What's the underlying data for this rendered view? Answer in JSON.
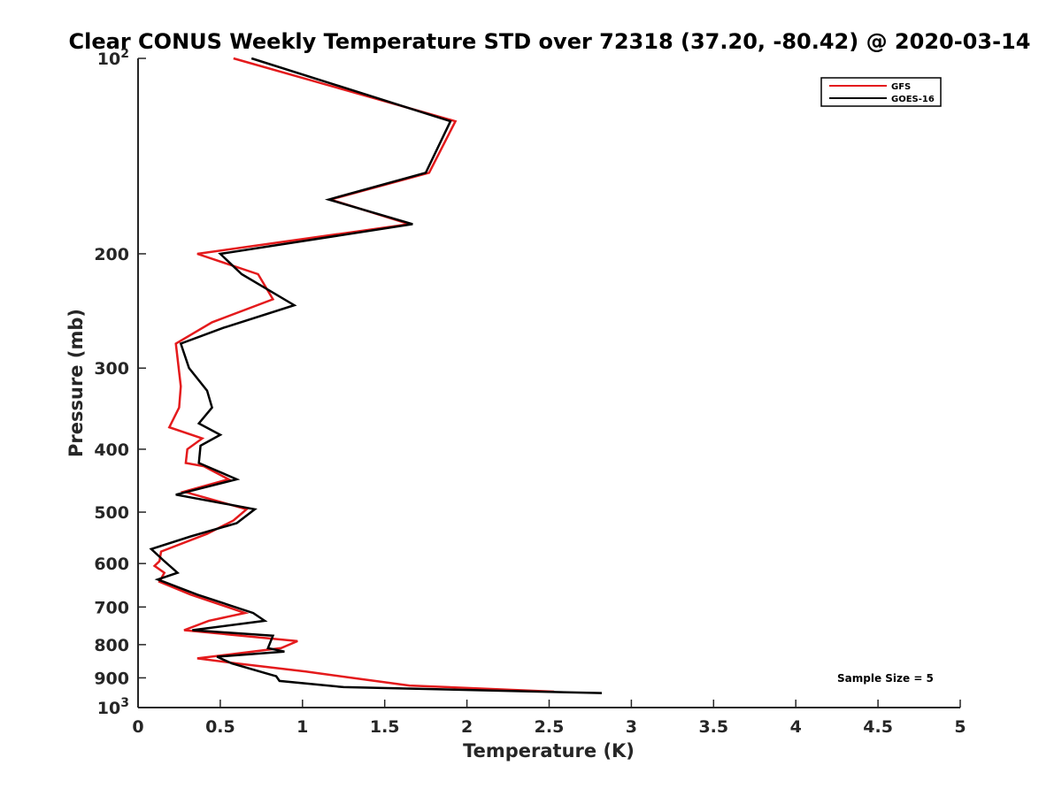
{
  "chart_data": {
    "type": "line",
    "title": "Clear CONUS Weekly Temperature STD over 72318 (37.20, -80.42) @ 2020-03-14",
    "xlabel": "Temperature (K)",
    "ylabel": "Pressure (mb)",
    "xlim": [
      0,
      5
    ],
    "ylim": [
      100,
      1000
    ],
    "y_scale": "log",
    "y_reversed": true,
    "x_ticks": [
      "0",
      "0.5",
      "1",
      "1.5",
      "2",
      "2.5",
      "3",
      "3.5",
      "4",
      "4.5",
      "5"
    ],
    "y_ticks": [
      {
        "value": 100,
        "base": "10",
        "exp": "2"
      },
      {
        "value": 200,
        "label": "200"
      },
      {
        "value": 300,
        "label": "300"
      },
      {
        "value": 400,
        "label": "400"
      },
      {
        "value": 500,
        "label": "500"
      },
      {
        "value": 600,
        "label": "600"
      },
      {
        "value": 700,
        "label": "700"
      },
      {
        "value": 800,
        "label": "800"
      },
      {
        "value": 900,
        "label": "900"
      },
      {
        "value": 1000,
        "base": "10",
        "exp": "3"
      }
    ],
    "grid": false,
    "legend_position": "top-right",
    "annotation": "Sample Size = 5",
    "series": [
      {
        "name": "GFS",
        "color": "#e41a1c",
        "points": [
          {
            "x": 0.58,
            "p": 100
          },
          {
            "x": 1.93,
            "p": 125
          },
          {
            "x": 1.77,
            "p": 150
          },
          {
            "x": 1.17,
            "p": 165
          },
          {
            "x": 1.65,
            "p": 180
          },
          {
            "x": 0.36,
            "p": 200
          },
          {
            "x": 0.73,
            "p": 215
          },
          {
            "x": 0.82,
            "p": 235
          },
          {
            "x": 0.45,
            "p": 255
          },
          {
            "x": 0.23,
            "p": 275
          },
          {
            "x": 0.26,
            "p": 320
          },
          {
            "x": 0.25,
            "p": 345
          },
          {
            "x": 0.19,
            "p": 370
          },
          {
            "x": 0.39,
            "p": 385
          },
          {
            "x": 0.3,
            "p": 400
          },
          {
            "x": 0.29,
            "p": 420
          },
          {
            "x": 0.4,
            "p": 425
          },
          {
            "x": 0.55,
            "p": 445
          },
          {
            "x": 0.28,
            "p": 465
          },
          {
            "x": 0.66,
            "p": 495
          },
          {
            "x": 0.58,
            "p": 515
          },
          {
            "x": 0.42,
            "p": 540
          },
          {
            "x": 0.14,
            "p": 575
          },
          {
            "x": 0.13,
            "p": 595
          },
          {
            "x": 0.1,
            "p": 605
          },
          {
            "x": 0.16,
            "p": 620
          },
          {
            "x": 0.13,
            "p": 640
          },
          {
            "x": 0.32,
            "p": 670
          },
          {
            "x": 0.65,
            "p": 715
          },
          {
            "x": 0.43,
            "p": 735
          },
          {
            "x": 0.28,
            "p": 760
          },
          {
            "x": 0.97,
            "p": 790
          },
          {
            "x": 0.87,
            "p": 810
          },
          {
            "x": 0.36,
            "p": 840
          },
          {
            "x": 0.6,
            "p": 855
          },
          {
            "x": 1.02,
            "p": 880
          },
          {
            "x": 1.3,
            "p": 900
          },
          {
            "x": 1.65,
            "p": 925
          },
          {
            "x": 2.53,
            "p": 945
          }
        ]
      },
      {
        "name": "GOES-16",
        "color": "#000000",
        "points": [
          {
            "x": 0.69,
            "p": 100
          },
          {
            "x": 1.9,
            "p": 125
          },
          {
            "x": 1.75,
            "p": 150
          },
          {
            "x": 1.16,
            "p": 165
          },
          {
            "x": 1.67,
            "p": 180
          },
          {
            "x": 0.5,
            "p": 200
          },
          {
            "x": 0.63,
            "p": 215
          },
          {
            "x": 0.95,
            "p": 240
          },
          {
            "x": 0.52,
            "p": 260
          },
          {
            "x": 0.26,
            "p": 275
          },
          {
            "x": 0.31,
            "p": 300
          },
          {
            "x": 0.42,
            "p": 325
          },
          {
            "x": 0.45,
            "p": 345
          },
          {
            "x": 0.37,
            "p": 365
          },
          {
            "x": 0.5,
            "p": 380
          },
          {
            "x": 0.38,
            "p": 395
          },
          {
            "x": 0.37,
            "p": 420
          },
          {
            "x": 0.6,
            "p": 445
          },
          {
            "x": 0.23,
            "p": 470
          },
          {
            "x": 0.71,
            "p": 495
          },
          {
            "x": 0.6,
            "p": 520
          },
          {
            "x": 0.32,
            "p": 545
          },
          {
            "x": 0.08,
            "p": 570
          },
          {
            "x": 0.16,
            "p": 595
          },
          {
            "x": 0.24,
            "p": 620
          },
          {
            "x": 0.12,
            "p": 635
          },
          {
            "x": 0.36,
            "p": 670
          },
          {
            "x": 0.7,
            "p": 715
          },
          {
            "x": 0.77,
            "p": 735
          },
          {
            "x": 0.33,
            "p": 760
          },
          {
            "x": 0.82,
            "p": 775
          },
          {
            "x": 0.79,
            "p": 810
          },
          {
            "x": 0.89,
            "p": 820
          },
          {
            "x": 0.48,
            "p": 835
          },
          {
            "x": 0.57,
            "p": 855
          },
          {
            "x": 0.84,
            "p": 895
          },
          {
            "x": 0.86,
            "p": 910
          },
          {
            "x": 1.25,
            "p": 930
          },
          {
            "x": 2.82,
            "p": 950
          }
        ]
      }
    ]
  }
}
